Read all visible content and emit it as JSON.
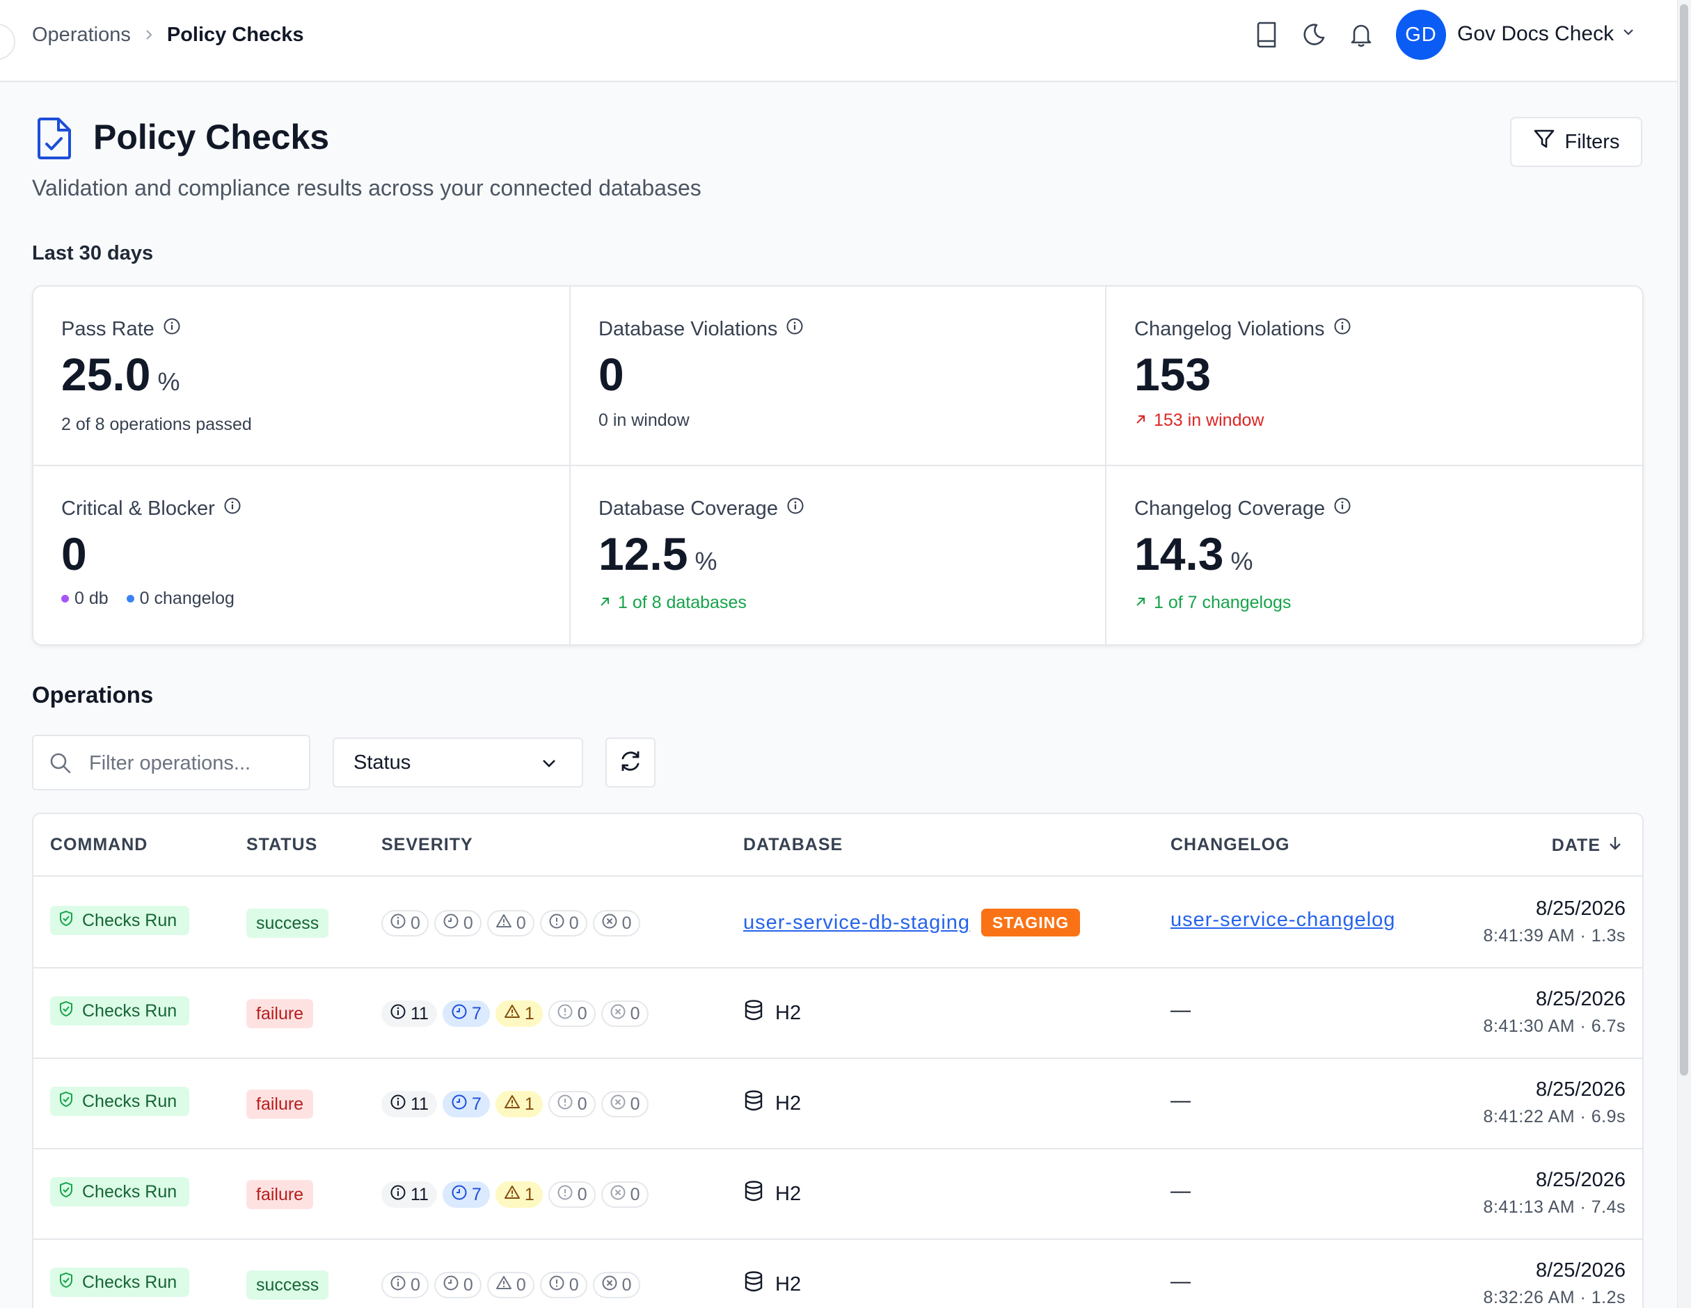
{
  "breadcrumb": {
    "parent": "Operations",
    "current": "Policy Checks"
  },
  "user": {
    "initials": "GD",
    "name": "Gov Docs Check"
  },
  "page": {
    "title": "Policy Checks",
    "subtitle": "Validation and compliance results across your connected databases",
    "filters_label": "Filters",
    "period_label": "Last 30 days"
  },
  "metrics": {
    "pass_rate": {
      "label": "Pass Rate",
      "value": "25.0",
      "unit": "%",
      "sub": "2 of 8 operations passed"
    },
    "db_violations": {
      "label": "Database Violations",
      "value": "0",
      "sub": "0 in window"
    },
    "cl_violations": {
      "label": "Changelog Violations",
      "value": "153",
      "sub": "153 in window"
    },
    "critical": {
      "label": "Critical & Blocker",
      "value": "0",
      "db": "0 db",
      "changelog": "0 changelog"
    },
    "db_coverage": {
      "label": "Database Coverage",
      "value": "12.5",
      "unit": "%",
      "sub": "1 of 8 databases"
    },
    "cl_coverage": {
      "label": "Changelog Coverage",
      "value": "14.3",
      "unit": "%",
      "sub": "1 of 7 changelogs"
    }
  },
  "operations": {
    "title": "Operations",
    "search_placeholder": "Filter operations...",
    "status_label": "Status",
    "columns": {
      "command": "COMMAND",
      "status": "STATUS",
      "severity": "SEVERITY",
      "database": "DATABASE",
      "changelog": "CHANGELOG",
      "date": "DATE"
    },
    "rows": [
      {
        "command": "Checks Run",
        "status": "success",
        "sev": [
          "0",
          "0",
          "0",
          "0",
          "0"
        ],
        "database": "user-service-db-staging",
        "env": "STAGING",
        "changelog": "user-service-changelog",
        "date": "8/25/2026",
        "time": "8:41:39 AM · 1.3s"
      },
      {
        "command": "Checks Run",
        "status": "failure",
        "sev": [
          "11",
          "7",
          "1",
          "0",
          "0"
        ],
        "database": "H2",
        "env": "",
        "changelog": "—",
        "date": "8/25/2026",
        "time": "8:41:30 AM · 6.7s"
      },
      {
        "command": "Checks Run",
        "status": "failure",
        "sev": [
          "11",
          "7",
          "1",
          "0",
          "0"
        ],
        "database": "H2",
        "env": "",
        "changelog": "—",
        "date": "8/25/2026",
        "time": "8:41:22 AM · 6.9s"
      },
      {
        "command": "Checks Run",
        "status": "failure",
        "sev": [
          "11",
          "7",
          "1",
          "0",
          "0"
        ],
        "database": "H2",
        "env": "",
        "changelog": "—",
        "date": "8/25/2026",
        "time": "8:41:13 AM · 7.4s"
      },
      {
        "command": "Checks Run",
        "status": "success",
        "sev": [
          "0",
          "0",
          "0",
          "0",
          "0"
        ],
        "database": "H2",
        "env": "",
        "changelog": "—",
        "date": "8/25/2026",
        "time": "8:32:26 AM · 1.2s"
      }
    ]
  },
  "colors": {
    "accent": "#0b5cf5",
    "success": "#16a34a",
    "danger": "#dc2626",
    "env_badge": "#f97316"
  }
}
